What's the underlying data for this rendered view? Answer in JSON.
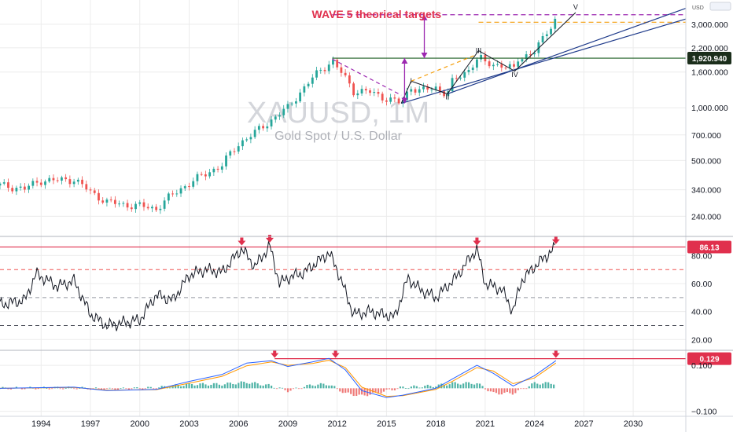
{
  "watermark": {
    "symbol": "XAUUSD, 1M",
    "description": "Gold Spot / U.S. Dollar"
  },
  "currency_label": "USD",
  "colors": {
    "up": "#26a69a",
    "down": "#ef5350",
    "line": "#131722",
    "trend": "#1e3a8a",
    "target": "#9c27b0",
    "projection": "#f59e0b",
    "resistance": "#1b5e20",
    "annotation": "#e0304d",
    "grid": "#ececec",
    "macd": "#2962ff",
    "signal": "#ff9800"
  },
  "chart_data": [
    {
      "type": "candlestick",
      "title": "WAVE 5 theorical targets",
      "x_ticks": [
        "1994",
        "1997",
        "2000",
        "2003",
        "2006",
        "2009",
        "2012",
        "2015",
        "2018",
        "2021",
        "2024",
        "2027",
        "2030"
      ],
      "y_scale": "log",
      "y_ticks": [
        "3,000.000",
        "2,200.000",
        "1,600.000",
        "1,000.000",
        "700.000",
        "500.000",
        "340.000",
        "240.000"
      ],
      "y_range": [
        190,
        3800
      ],
      "current_price": "1,920.940",
      "price_path": [
        [
          1991.5,
          360
        ],
        [
          1993,
          345
        ],
        [
          1994,
          385
        ],
        [
          1995,
          385
        ],
        [
          1996,
          390
        ],
        [
          1997,
          330
        ],
        [
          1998,
          290
        ],
        [
          1999,
          280
        ],
        [
          2000,
          275
        ],
        [
          2001,
          265
        ],
        [
          2002,
          320
        ],
        [
          2003,
          370
        ],
        [
          2004,
          420
        ],
        [
          2005,
          470
        ],
        [
          2006,
          620
        ],
        [
          2007,
          720
        ],
        [
          2008,
          850
        ],
        [
          2009,
          1000
        ],
        [
          2010,
          1300
        ],
        [
          2011,
          1650
        ],
        [
          2011.7,
          1850
        ],
        [
          2012,
          1700
        ],
        [
          2013,
          1250
        ],
        [
          2014,
          1230
        ],
        [
          2015,
          1130
        ],
        [
          2015.9,
          1060
        ],
        [
          2016.5,
          1320
        ],
        [
          2017,
          1250
        ],
        [
          2018,
          1300
        ],
        [
          2018.7,
          1200
        ],
        [
          2019,
          1400
        ],
        [
          2020,
          1650
        ],
        [
          2020.6,
          1950
        ],
        [
          2021,
          1800
        ],
        [
          2022,
          1750
        ],
        [
          2022.8,
          1650
        ],
        [
          2023,
          1900
        ],
        [
          2024,
          2100
        ],
        [
          2024.5,
          2450
        ],
        [
          2025.3,
          3250
        ]
      ],
      "wave_labels": [
        {
          "label": "I",
          "x": 2016.5,
          "price": 1380
        },
        {
          "label": "II",
          "x": 2018.7,
          "price": 1120
        },
        {
          "label": "III",
          "x": 2020.6,
          "price": 2050
        },
        {
          "label": "IV",
          "x": 2022.8,
          "price": 1500
        },
        {
          "label": "V",
          "x": 2026.5,
          "price": 3650
        }
      ],
      "levels": {
        "target_high": 3400,
        "projection": 3080,
        "resistance": 1920.94
      }
    },
    {
      "type": "line",
      "indicator": "RSI",
      "y_ticks": [
        "80.00",
        "60.00",
        "40.00",
        "20.00"
      ],
      "y_range": [
        14,
        92
      ],
      "current_value": "86.13",
      "levels": {
        "overbought": 70,
        "mid": 50,
        "oversold": 30,
        "resistance": 86.13
      },
      "values": [
        [
          1991.5,
          45
        ],
        [
          1993,
          48
        ],
        [
          1993.7,
          67
        ],
        [
          1995,
          58
        ],
        [
          1996,
          62
        ],
        [
          1997,
          38
        ],
        [
          1998,
          30
        ],
        [
          1999,
          32
        ],
        [
          2000,
          34
        ],
        [
          2001,
          52
        ],
        [
          2002,
          48
        ],
        [
          2003,
          66
        ],
        [
          2004,
          70
        ],
        [
          2005,
          68
        ],
        [
          2006.2,
          85
        ],
        [
          2007,
          72
        ],
        [
          2007.9,
          87
        ],
        [
          2008.5,
          60
        ],
        [
          2009,
          64
        ],
        [
          2010,
          68
        ],
        [
          2011.5,
          82
        ],
        [
          2012,
          70
        ],
        [
          2013,
          38
        ],
        [
          2014,
          40
        ],
        [
          2015.5,
          36
        ],
        [
          2016.3,
          64
        ],
        [
          2017,
          56
        ],
        [
          2018,
          50
        ],
        [
          2019.2,
          64
        ],
        [
          2020.5,
          85
        ],
        [
          2021,
          60
        ],
        [
          2022,
          56
        ],
        [
          2022.7,
          40
        ],
        [
          2023.2,
          62
        ],
        [
          2024,
          72
        ],
        [
          2025.3,
          86
        ]
      ],
      "peak_markers": [
        2006.2,
        2007.9,
        2020.5,
        2025.3
      ]
    },
    {
      "type": "line",
      "indicator": "MACD",
      "y_ticks": [
        "0.100",
        "−0.100"
      ],
      "y_range": [
        -0.115,
        0.155
      ],
      "current_value": "0.129",
      "levels": {
        "resistance": 0.129
      },
      "macd": [
        [
          1991.5,
          0.0
        ],
        [
          1996,
          0.005
        ],
        [
          1998,
          -0.01
        ],
        [
          2001,
          -0.005
        ],
        [
          2003,
          0.03
        ],
        [
          2005,
          0.06
        ],
        [
          2006.5,
          0.11
        ],
        [
          2008,
          0.12
        ],
        [
          2009,
          0.095
        ],
        [
          2010.5,
          0.115
        ],
        [
          2011.5,
          0.13
        ],
        [
          2012.5,
          0.08
        ],
        [
          2013.5,
          -0.01
        ],
        [
          2015,
          -0.04
        ],
        [
          2016,
          -0.03
        ],
        [
          2018,
          0.0
        ],
        [
          2019,
          0.04
        ],
        [
          2020.5,
          0.1
        ],
        [
          2021.5,
          0.065
        ],
        [
          2022.7,
          0.01
        ],
        [
          2024,
          0.055
        ],
        [
          2025.3,
          0.12
        ]
      ],
      "signal": [
        [
          1991.5,
          0.0
        ],
        [
          1996,
          0.004
        ],
        [
          1998,
          -0.008
        ],
        [
          2001,
          -0.006
        ],
        [
          2003,
          0.022
        ],
        [
          2005,
          0.052
        ],
        [
          2006.5,
          0.098
        ],
        [
          2008,
          0.115
        ],
        [
          2009,
          0.1
        ],
        [
          2010.5,
          0.108
        ],
        [
          2011.5,
          0.122
        ],
        [
          2012.5,
          0.09
        ],
        [
          2013.5,
          0.005
        ],
        [
          2015,
          -0.035
        ],
        [
          2016,
          -0.032
        ],
        [
          2018,
          -0.005
        ],
        [
          2019,
          0.03
        ],
        [
          2020.5,
          0.09
        ],
        [
          2021.5,
          0.075
        ],
        [
          2022.7,
          0.02
        ],
        [
          2024,
          0.045
        ],
        [
          2025.3,
          0.11
        ]
      ],
      "peak_markers": [
        2008.2,
        2011.9,
        2025.3
      ]
    }
  ]
}
